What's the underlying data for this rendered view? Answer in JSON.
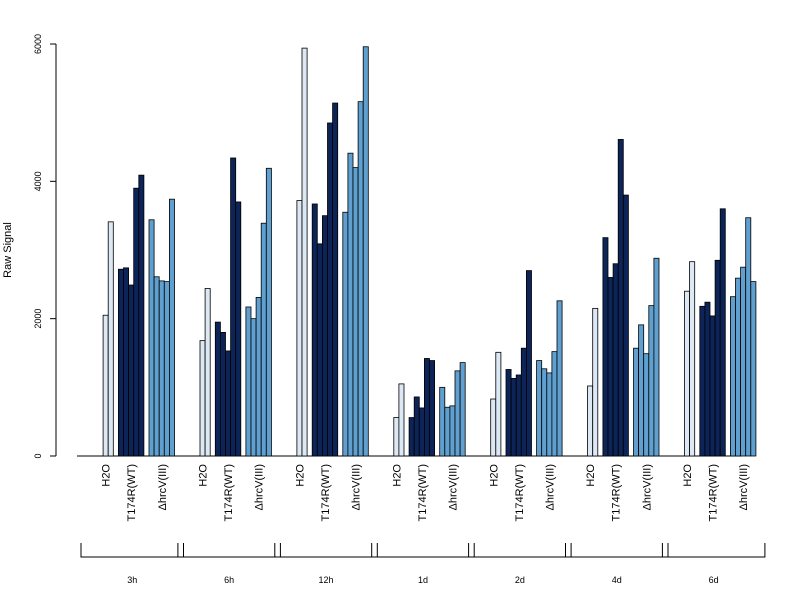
{
  "chart_data": {
    "type": "bar",
    "ylabel": "Raw Signal",
    "ylim": [
      0,
      6000
    ],
    "yticks": [
      0,
      2000,
      4000,
      6000
    ],
    "grid": false,
    "legend": "none",
    "group_labels": [
      "H2O",
      "T174R(WT)",
      "ΔhrcV(III)"
    ],
    "colors": [
      "#dce8f4",
      "#0c2457",
      "#5fa0d0"
    ],
    "timepoints": [
      {
        "label": "3h",
        "groups": [
          {
            "name": "H2O",
            "values": [
              0,
              2050,
              3410
            ]
          },
          {
            "name": "T174R(WT)",
            "values": [
              2720,
              2740,
              2490,
              3900,
              4090
            ]
          },
          {
            "name": "ΔhrcV(III)",
            "values": [
              3440,
              2610,
              2550,
              2540,
              3740
            ]
          }
        ]
      },
      {
        "label": "6h",
        "groups": [
          {
            "name": "H2O",
            "values": [
              0,
              1680,
              2440
            ]
          },
          {
            "name": "T174R(WT)",
            "values": [
              1950,
              1800,
              1530,
              4340,
              3700
            ]
          },
          {
            "name": "ΔhrcV(III)",
            "values": [
              2170,
              2000,
              2310,
              3390,
              4190
            ]
          }
        ]
      },
      {
        "label": "12h",
        "groups": [
          {
            "name": "H2O",
            "values": [
              0,
              3720,
              5940
            ]
          },
          {
            "name": "T174R(WT)",
            "values": [
              3670,
              3090,
              3500,
              4850,
              5140
            ]
          },
          {
            "name": "ΔhrcV(III)",
            "values": [
              3550,
              4410,
              4200,
              5160,
              5960
            ]
          }
        ]
      },
      {
        "label": "1d",
        "groups": [
          {
            "name": "H2O",
            "values": [
              0,
              560,
              1050
            ]
          },
          {
            "name": "T174R(WT)",
            "values": [
              560,
              860,
              700,
              1420,
              1390
            ]
          },
          {
            "name": "ΔhrcV(III)",
            "values": [
              1000,
              710,
              730,
              1240,
              1360
            ]
          }
        ]
      },
      {
        "label": "2d",
        "groups": [
          {
            "name": "H2O",
            "values": [
              0,
              830,
              1510
            ]
          },
          {
            "name": "T174R(WT)",
            "values": [
              1260,
              1130,
              1180,
              1570,
              2700
            ]
          },
          {
            "name": "ΔhrcV(III)",
            "values": [
              1390,
              1270,
              1210,
              1520,
              2260
            ]
          }
        ]
      },
      {
        "label": "4d",
        "groups": [
          {
            "name": "H2O",
            "values": [
              0,
              1020,
              2150
            ]
          },
          {
            "name": "T174R(WT)",
            "values": [
              3180,
              2600,
              2800,
              4610,
              3800
            ]
          },
          {
            "name": "ΔhrcV(III)",
            "values": [
              1570,
              1910,
              1490,
              2190,
              2880
            ]
          }
        ]
      },
      {
        "label": "6d",
        "groups": [
          {
            "name": "H2O",
            "values": [
              0,
              2400,
              2830
            ]
          },
          {
            "name": "T174R(WT)",
            "values": [
              2180,
              2240,
              2040,
              2850,
              3600
            ]
          },
          {
            "name": "ΔhrcV(III)",
            "values": [
              2320,
              2590,
              2750,
              3470,
              2540
            ]
          }
        ]
      }
    ]
  }
}
